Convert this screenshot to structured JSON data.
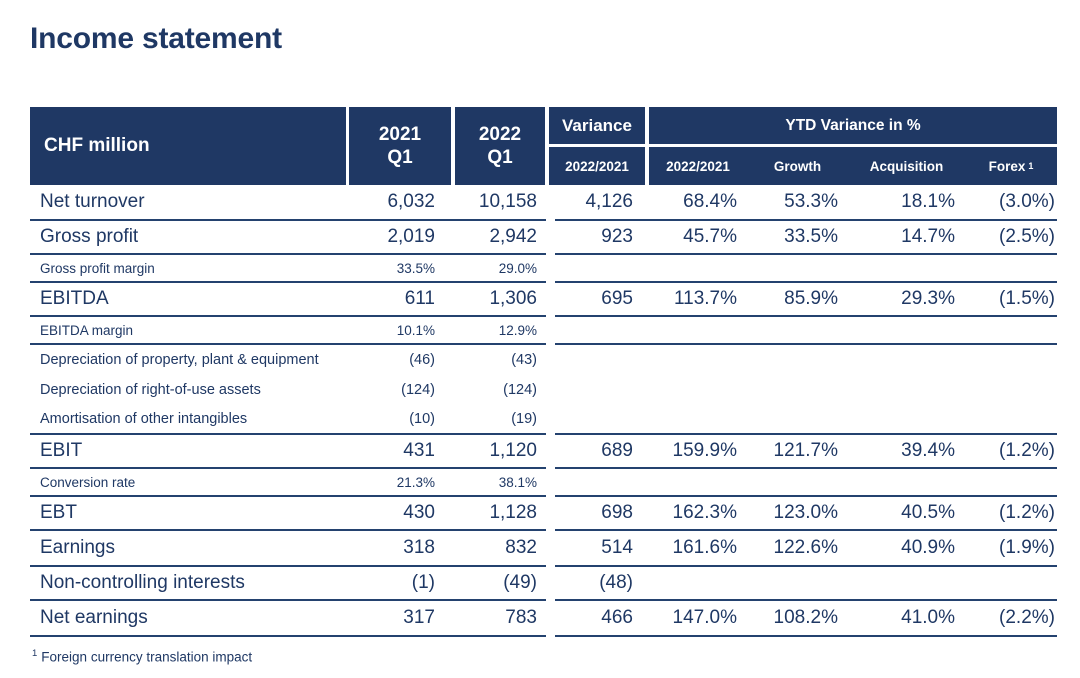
{
  "title": "Income statement",
  "colors": {
    "navy": "#1f3864"
  },
  "table": {
    "unit_label": "CHF million",
    "col2021": {
      "year": "2021",
      "quarter": "Q1"
    },
    "col2022": {
      "year": "2022",
      "quarter": "Q1"
    },
    "variance_header": {
      "top": "Variance",
      "sub": "2022/2021"
    },
    "ytd_header": "YTD Variance in %",
    "ytd_sub": {
      "col1": "2022/2021",
      "col2": "Growth",
      "col3": "Acquisition",
      "col4": "Forex",
      "col4_sup": "1"
    },
    "rows": [
      {
        "label": "Net turnover",
        "type": "main",
        "tall": true,
        "v2021": "6,032",
        "v2022": "10,158",
        "variance": "4,126",
        "ytd": "68.4%",
        "growth": "53.3%",
        "acquisition": "18.1%",
        "forex": "(3.0%)",
        "line": true
      },
      {
        "label": "Gross profit",
        "type": "main",
        "v2021": "2,019",
        "v2022": "2,942",
        "variance": "923",
        "ytd": "45.7%",
        "growth": "33.5%",
        "acquisition": "14.7%",
        "forex": "(2.5%)",
        "line": true
      },
      {
        "label": "Gross profit margin",
        "type": "sub",
        "v2021": "33.5%",
        "v2022": "29.0%",
        "variance": "",
        "ytd": "",
        "growth": "",
        "acquisition": "",
        "forex": "",
        "line": true
      },
      {
        "label": "EBITDA",
        "type": "main",
        "v2021": "611",
        "v2022": "1,306",
        "variance": "695",
        "ytd": "113.7%",
        "growth": "85.9%",
        "acquisition": "29.3%",
        "forex": "(1.5%)",
        "line": true
      },
      {
        "label": "EBITDA margin",
        "type": "sub",
        "v2021": "10.1%",
        "v2022": "12.9%",
        "variance": "",
        "ytd": "",
        "growth": "",
        "acquisition": "",
        "forex": "",
        "line": true
      },
      {
        "label": "Depreciation of property, plant & equipment",
        "type": "detail",
        "v2021": "(46)",
        "v2022": "(43)",
        "variance": "",
        "ytd": "",
        "growth": "",
        "acquisition": "",
        "forex": "",
        "line": false
      },
      {
        "label": "Depreciation of right-of-use assets",
        "type": "detail",
        "v2021": "(124)",
        "v2022": "(124)",
        "variance": "",
        "ytd": "",
        "growth": "",
        "acquisition": "",
        "forex": "",
        "line": false
      },
      {
        "label": "Amortisation of other intangibles",
        "type": "detail",
        "v2021": "(10)",
        "v2022": "(19)",
        "variance": "",
        "ytd": "",
        "growth": "",
        "acquisition": "",
        "forex": "",
        "line": true
      },
      {
        "label": "EBIT",
        "type": "main",
        "v2021": "431",
        "v2022": "1,120",
        "variance": "689",
        "ytd": "159.9%",
        "growth": "121.7%",
        "acquisition": "39.4%",
        "forex": "(1.2%)",
        "line": true
      },
      {
        "label": "Conversion rate",
        "type": "sub",
        "v2021": "21.3%",
        "v2022": "38.1%",
        "variance": "",
        "ytd": "",
        "growth": "",
        "acquisition": "",
        "forex": "",
        "line": true
      },
      {
        "label": "EBT",
        "type": "main",
        "v2021": "430",
        "v2022": "1,128",
        "variance": "698",
        "ytd": "162.3%",
        "growth": "123.0%",
        "acquisition": "40.5%",
        "forex": "(1.2%)",
        "line": true
      },
      {
        "label": "Earnings",
        "type": "main",
        "tall": true,
        "v2021": "318",
        "v2022": "832",
        "variance": "514",
        "ytd": "161.6%",
        "growth": "122.6%",
        "acquisition": "40.9%",
        "forex": "(1.9%)",
        "line": true
      },
      {
        "label": "Non-controlling interests",
        "type": "main",
        "v2021": "(1)",
        "v2022": "(49)",
        "variance": "(48)",
        "ytd": "",
        "growth": "",
        "acquisition": "",
        "forex": "",
        "line": true
      },
      {
        "label": "Net earnings",
        "type": "main",
        "tall": true,
        "v2021": "317",
        "v2022": "783",
        "variance": "466",
        "ytd": "147.0%",
        "growth": "108.2%",
        "acquisition": "41.0%",
        "forex": "(2.2%)",
        "line": true
      }
    ],
    "footnote": {
      "marker": "1",
      "text": "Foreign currency translation impact"
    }
  }
}
